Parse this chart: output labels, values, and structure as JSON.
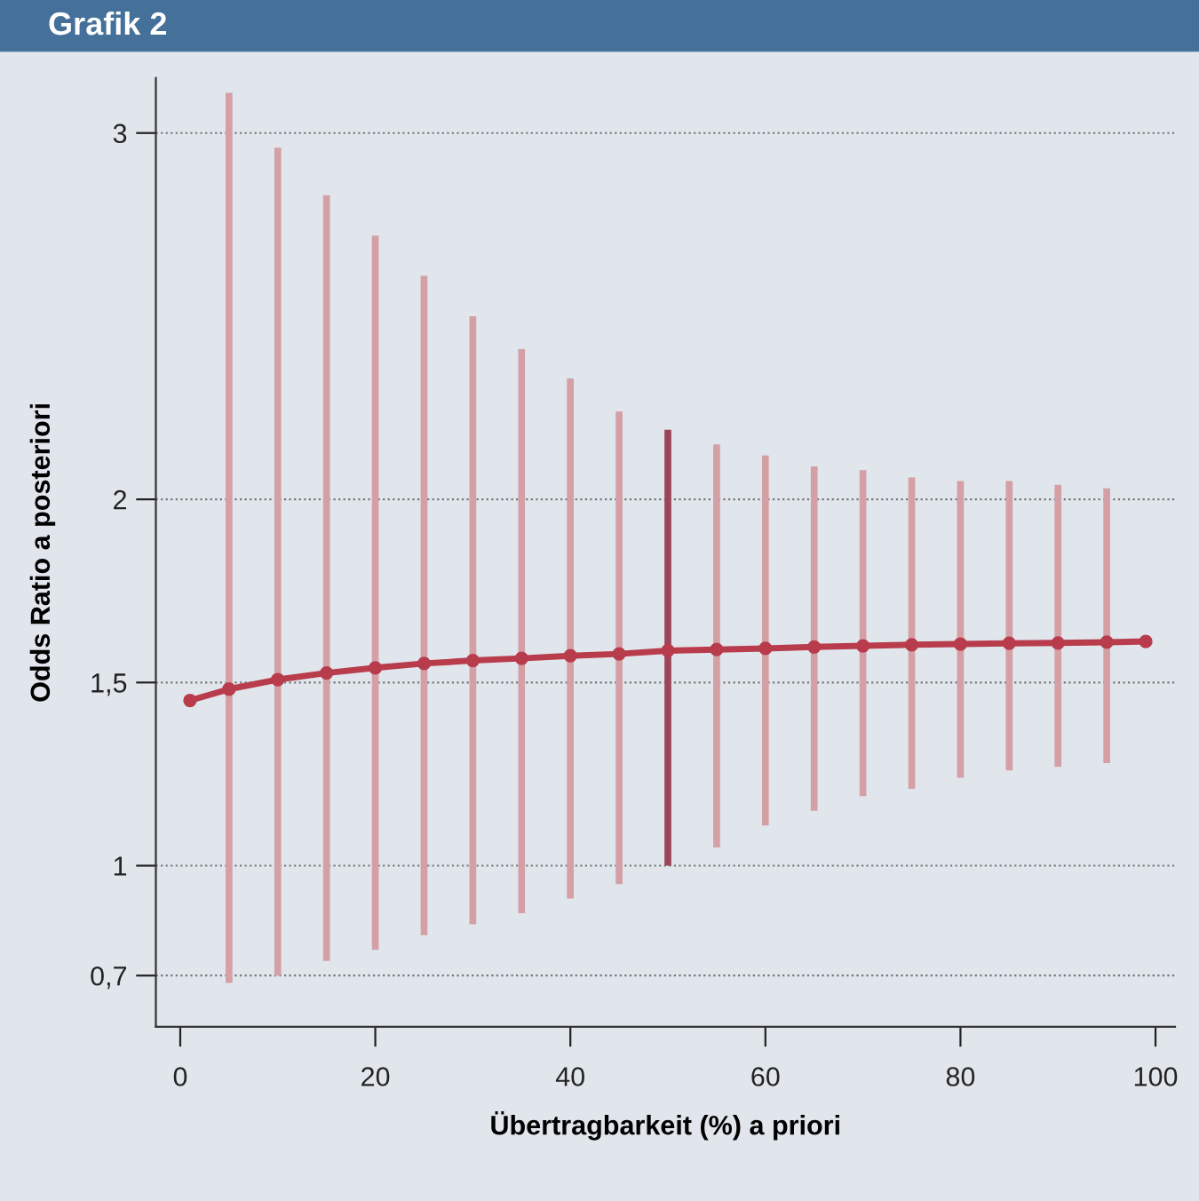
{
  "chart_data": {
    "type": "bar",
    "title": "Grafik 2",
    "xlabel": "Übertragbarkeit (%) a priori",
    "ylabel": "Odds Ratio a posteriori",
    "x": [
      5,
      10,
      15,
      20,
      25,
      30,
      35,
      40,
      45,
      50,
      55,
      60,
      65,
      70,
      75,
      80,
      85,
      90,
      95
    ],
    "series": [
      {
        "values": [
          2.43,
          2.26,
          2.09,
          1.95,
          1.8,
          1.66,
          1.54,
          1.42,
          1.29,
          1.19,
          1.1,
          1.01,
          0.94,
          0.89,
          0.85,
          0.81,
          0.79,
          0.77,
          0.75
        ],
        "base": [
          0.68,
          0.7,
          0.74,
          0.77,
          0.81,
          0.84,
          0.87,
          0.91,
          0.95,
          1.0,
          1.05,
          1.11,
          1.15,
          1.19,
          1.21,
          1.24,
          1.26,
          1.27,
          1.28
        ],
        "colors": [
          "#d4a0a6",
          "#d4a0a6",
          "#d4a0a6",
          "#d4a0a6",
          "#d4a0a6",
          "#d4a0a6",
          "#d4a0a6",
          "#d4a0a6",
          "#d4a0a6",
          "#9c4558",
          "#d4a0a6",
          "#d4a0a6",
          "#d4a0a6",
          "#d4a0a6",
          "#d4a0a6",
          "#d4a0a6",
          "#d4a0a6",
          "#d4a0a6",
          "#d4a0a6"
        ]
      },
      {
        "type": "line",
        "color": "#b83c4c",
        "marker": "circle",
        "x": [
          1,
          5,
          10,
          15,
          20,
          25,
          30,
          35,
          40,
          45,
          50,
          55,
          60,
          65,
          70,
          75,
          80,
          85,
          90,
          95,
          99
        ],
        "values": [
          1.451,
          1.482,
          1.508,
          1.526,
          1.54,
          1.552,
          1.56,
          1.566,
          1.573,
          1.578,
          1.587,
          1.59,
          1.593,
          1.597,
          1.6,
          1.603,
          1.605,
          1.607,
          1.608,
          1.61,
          1.612
        ]
      }
    ],
    "xlim": [
      -2.5,
      102
    ],
    "xticks": [
      0,
      20,
      40,
      60,
      80,
      100
    ],
    "ylim": [
      0.56,
      3.15
    ],
    "yticks": [
      {
        "value": 0.7,
        "label": "0,7"
      },
      1,
      {
        "value": 1.5,
        "label": "1,5"
      },
      2,
      3
    ],
    "grid": "y"
  }
}
